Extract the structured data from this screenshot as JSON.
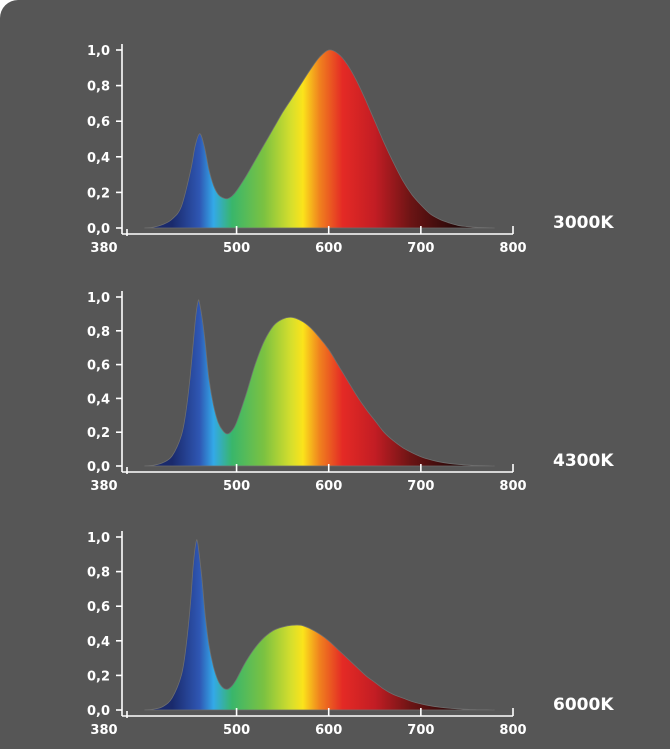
{
  "colors": {
    "panel_background": "#565656",
    "axis": "#ffffff",
    "text": "#ffffff",
    "spectrum": [
      {
        "nm": 430,
        "color": "#1a2a6c"
      },
      {
        "nm": 460,
        "color": "#2f57b4"
      },
      {
        "nm": 475,
        "color": "#33a9e8"
      },
      {
        "nm": 495,
        "color": "#39b66b"
      },
      {
        "nm": 530,
        "color": "#7cc241"
      },
      {
        "nm": 560,
        "color": "#d8df2c"
      },
      {
        "nm": 572,
        "color": "#fbe31b"
      },
      {
        "nm": 590,
        "color": "#f0821e"
      },
      {
        "nm": 615,
        "color": "#e42a25"
      },
      {
        "nm": 650,
        "color": "#c31d24"
      },
      {
        "nm": 690,
        "color": "#6a1414"
      },
      {
        "nm": 740,
        "color": "#250808"
      },
      {
        "nm": 790,
        "color": "#150505"
      }
    ]
  },
  "chart_data": [
    {
      "type": "area",
      "title": "",
      "label": "3000K",
      "xlabel": "",
      "ylabel": "",
      "xlim": [
        380,
        800
      ],
      "ylim": [
        0,
        1.0
      ],
      "x_ticks": [
        "380",
        "500",
        "600",
        "700",
        "800"
      ],
      "y_ticks": [
        "0,0",
        "0,2",
        "0,4",
        "0,6",
        "0,8",
        "1,0"
      ],
      "grid": false,
      "x": [
        400,
        410,
        420,
        430,
        440,
        450,
        455,
        460,
        465,
        470,
        475,
        480,
        485,
        490,
        495,
        500,
        510,
        520,
        530,
        540,
        550,
        560,
        570,
        580,
        590,
        600,
        610,
        620,
        630,
        640,
        650,
        660,
        670,
        680,
        690,
        700,
        710,
        720,
        730,
        740,
        750,
        760,
        770,
        780
      ],
      "y": [
        0.0,
        0.005,
        0.02,
        0.05,
        0.12,
        0.32,
        0.46,
        0.53,
        0.46,
        0.33,
        0.24,
        0.19,
        0.17,
        0.165,
        0.18,
        0.21,
        0.29,
        0.38,
        0.47,
        0.56,
        0.65,
        0.73,
        0.81,
        0.89,
        0.96,
        1.0,
        0.98,
        0.92,
        0.83,
        0.72,
        0.6,
        0.48,
        0.37,
        0.27,
        0.19,
        0.13,
        0.08,
        0.05,
        0.03,
        0.015,
        0.008,
        0.004,
        0.002,
        0.0
      ]
    },
    {
      "type": "area",
      "title": "",
      "label": "4300K",
      "xlabel": "",
      "ylabel": "",
      "xlim": [
        380,
        800
      ],
      "ylim": [
        0,
        1.0
      ],
      "x_ticks": [
        "380",
        "500",
        "600",
        "700",
        "800"
      ],
      "y_ticks": [
        "0,0",
        "0,2",
        "0,4",
        "0,6",
        "0,8",
        "1,0"
      ],
      "grid": false,
      "x": [
        400,
        410,
        420,
        430,
        440,
        445,
        450,
        455,
        458,
        460,
        465,
        470,
        475,
        480,
        485,
        490,
        495,
        500,
        510,
        520,
        530,
        540,
        550,
        560,
        570,
        580,
        590,
        600,
        610,
        620,
        630,
        640,
        650,
        660,
        670,
        680,
        690,
        700,
        710,
        720,
        730,
        740,
        750,
        760,
        770,
        780
      ],
      "y": [
        0.0,
        0.005,
        0.02,
        0.06,
        0.18,
        0.32,
        0.55,
        0.85,
        0.97,
        0.96,
        0.78,
        0.52,
        0.36,
        0.26,
        0.21,
        0.19,
        0.21,
        0.26,
        0.42,
        0.6,
        0.74,
        0.83,
        0.87,
        0.88,
        0.86,
        0.82,
        0.76,
        0.69,
        0.6,
        0.51,
        0.42,
        0.34,
        0.27,
        0.2,
        0.15,
        0.11,
        0.08,
        0.055,
        0.038,
        0.025,
        0.016,
        0.01,
        0.006,
        0.003,
        0.001,
        0.0
      ]
    },
    {
      "type": "area",
      "title": "",
      "label": "6000K",
      "xlabel": "",
      "ylabel": "",
      "xlim": [
        380,
        800
      ],
      "ylim": [
        0,
        1.0
      ],
      "x_ticks": [
        "380",
        "500",
        "600",
        "700",
        "800"
      ],
      "y_ticks": [
        "0,0",
        "0,2",
        "0,4",
        "0,6",
        "0,8",
        "1,0"
      ],
      "grid": false,
      "x": [
        400,
        410,
        420,
        430,
        440,
        445,
        450,
        453,
        456,
        458,
        462,
        466,
        470,
        475,
        480,
        485,
        490,
        495,
        500,
        510,
        520,
        530,
        540,
        550,
        560,
        570,
        580,
        590,
        600,
        610,
        620,
        630,
        640,
        650,
        660,
        670,
        680,
        690,
        700,
        710,
        720,
        730,
        740,
        750,
        760,
        770,
        780
      ],
      "y": [
        0.0,
        0.005,
        0.02,
        0.07,
        0.2,
        0.36,
        0.62,
        0.84,
        0.97,
        0.96,
        0.78,
        0.55,
        0.38,
        0.25,
        0.17,
        0.13,
        0.12,
        0.14,
        0.18,
        0.28,
        0.36,
        0.42,
        0.46,
        0.48,
        0.49,
        0.49,
        0.47,
        0.44,
        0.4,
        0.35,
        0.3,
        0.25,
        0.2,
        0.16,
        0.12,
        0.09,
        0.07,
        0.05,
        0.035,
        0.025,
        0.017,
        0.011,
        0.007,
        0.004,
        0.002,
        0.001,
        0.0
      ]
    }
  ]
}
